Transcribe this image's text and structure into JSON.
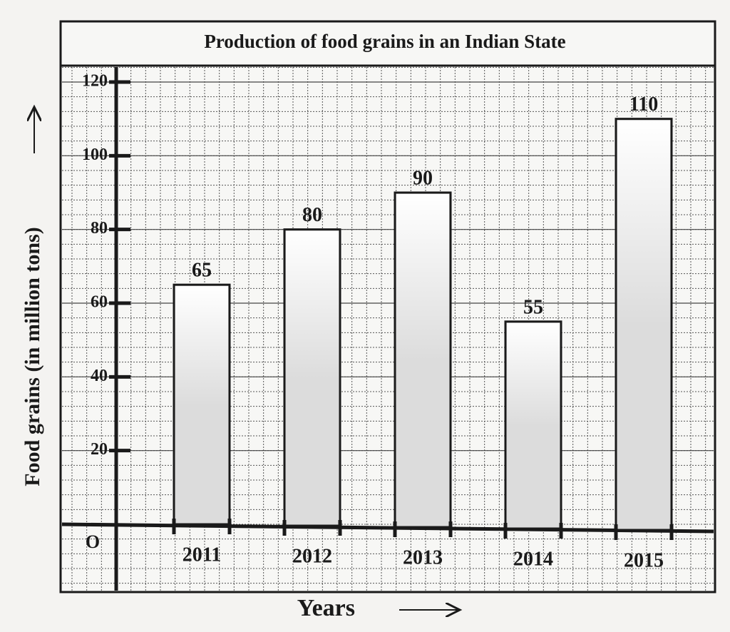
{
  "chart_data": {
    "type": "bar",
    "title": "Production of food grains in an Indian State",
    "x_label": "Years",
    "y_label": "Food grains (in million tons)",
    "origin_label": "O",
    "categories": [
      "2011",
      "2012",
      "2013",
      "2014",
      "2015"
    ],
    "values": [
      65,
      80,
      90,
      55,
      110
    ],
    "color": "#dcdcdc",
    "ylim": [
      0,
      120
    ],
    "yticks": [
      20,
      40,
      60,
      80,
      100,
      120
    ],
    "grid": true
  }
}
